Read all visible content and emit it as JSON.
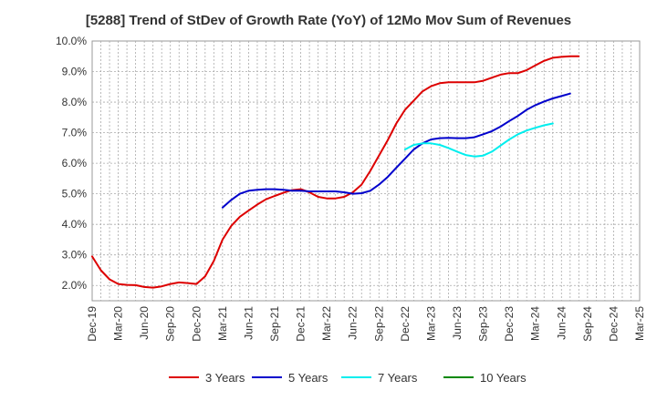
{
  "chart_data": {
    "type": "line",
    "title": "[5288]  Trend of StDev of Growth Rate (YoY) of 12Mo Mov Sum of Revenues",
    "xlabel": "",
    "ylabel": "",
    "ylim": [
      1.5,
      10.0
    ],
    "yticks": [
      2.0,
      3.0,
      4.0,
      5.0,
      6.0,
      7.0,
      8.0,
      9.0,
      10.0
    ],
    "ytick_labels": [
      "2.0%",
      "3.0%",
      "4.0%",
      "5.0%",
      "6.0%",
      "7.0%",
      "8.0%",
      "9.0%",
      "10.0%"
    ],
    "x_tick_labels": [
      "Dec-19",
      "Mar-20",
      "Jun-20",
      "Sep-20",
      "Dec-20",
      "Mar-21",
      "Jun-21",
      "Sep-21",
      "Dec-21",
      "Mar-22",
      "Jun-22",
      "Sep-22",
      "Dec-22",
      "Mar-23",
      "Jun-23",
      "Sep-23",
      "Dec-23",
      "Mar-24",
      "Jun-24",
      "Sep-24",
      "Dec-24",
      "Mar-25"
    ],
    "x_start": "Dec-19",
    "x_count": 64,
    "grid": true,
    "legend_position": "bottom",
    "series": [
      {
        "name": "3 Years",
        "color": "#dd0000",
        "start_index": 0,
        "values": [
          2.95,
          2.5,
          2.2,
          2.05,
          2.02,
          2.01,
          1.95,
          1.93,
          1.97,
          2.05,
          2.1,
          2.08,
          2.05,
          2.3,
          2.8,
          3.5,
          3.95,
          4.25,
          4.45,
          4.65,
          4.82,
          4.93,
          5.03,
          5.12,
          5.15,
          5.05,
          4.9,
          4.85,
          4.85,
          4.9,
          5.05,
          5.3,
          5.75,
          6.25,
          6.75,
          7.3,
          7.75,
          8.05,
          8.35,
          8.52,
          8.62,
          8.65,
          8.65,
          8.65,
          8.65,
          8.7,
          8.8,
          8.9,
          8.95,
          8.95,
          9.05,
          9.2,
          9.35,
          9.45,
          9.48,
          9.5,
          9.5
        ]
      },
      {
        "name": "5 Years",
        "color": "#0000cc",
        "start_index": 15,
        "values": [
          4.55,
          4.8,
          5.0,
          5.1,
          5.13,
          5.15,
          5.15,
          5.13,
          5.1,
          5.1,
          5.08,
          5.08,
          5.08,
          5.08,
          5.05,
          5.0,
          5.02,
          5.1,
          5.3,
          5.55,
          5.85,
          6.15,
          6.45,
          6.65,
          6.78,
          6.82,
          6.83,
          6.82,
          6.82,
          6.85,
          6.95,
          7.05,
          7.2,
          7.38,
          7.55,
          7.75,
          7.9,
          8.02,
          8.12,
          8.2,
          8.28
        ]
      },
      {
        "name": "7 Years",
        "color": "#00eeee",
        "start_index": 36,
        "values": [
          6.45,
          6.6,
          6.65,
          6.65,
          6.6,
          6.5,
          6.38,
          6.27,
          6.22,
          6.25,
          6.38,
          6.58,
          6.78,
          6.95,
          7.07,
          7.16,
          7.24,
          7.3
        ]
      },
      {
        "name": "10 Years",
        "color": "#008800",
        "start_index": 0,
        "values": []
      }
    ]
  }
}
